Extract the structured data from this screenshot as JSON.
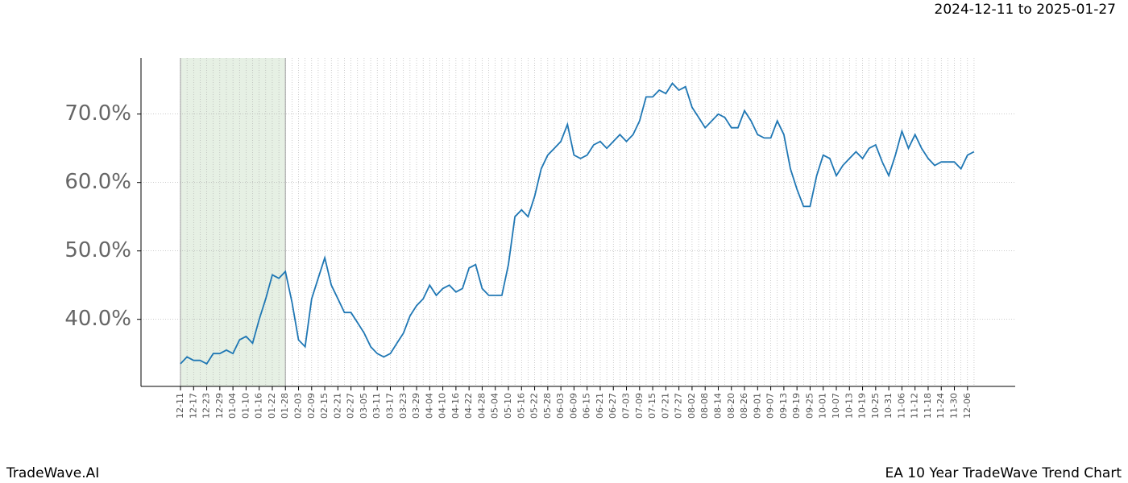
{
  "chart_data": {
    "type": "line",
    "date_range": "2024-12-11 to 2025-01-27",
    "brand": "TradeWave.AI",
    "title": "EA 10 Year TradeWave Trend Chart",
    "categories": [
      "12-11",
      null,
      "12-17",
      null,
      "12-23",
      null,
      "12-29",
      null,
      "01-04",
      null,
      "01-10",
      null,
      "01-16",
      null,
      "01-22",
      null,
      "01-28",
      null,
      "02-03",
      null,
      "02-09",
      null,
      "02-15",
      null,
      "02-21",
      null,
      "02-27",
      null,
      "03-05",
      null,
      "03-11",
      null,
      "03-17",
      null,
      "03-23",
      null,
      "03-29",
      null,
      "04-04",
      null,
      "04-10",
      null,
      "04-16",
      null,
      "04-22",
      null,
      "04-28",
      null,
      "05-04",
      null,
      "05-10",
      null,
      "05-16",
      null,
      "05-22",
      null,
      "05-28",
      null,
      "06-03",
      null,
      "06-09",
      null,
      "06-15",
      null,
      "06-21",
      null,
      "06-27",
      null,
      "07-03",
      null,
      "07-09",
      null,
      "07-15",
      null,
      "07-21",
      null,
      "07-27",
      null,
      "08-02",
      null,
      "08-08",
      null,
      "08-14",
      null,
      "08-20",
      null,
      "08-26",
      null,
      "09-01",
      null,
      "09-07",
      null,
      "09-13",
      null,
      "09-19",
      null,
      "09-25",
      null,
      "10-01",
      null,
      "10-07",
      null,
      "10-13",
      null,
      "10-19",
      null,
      "10-25",
      null,
      "10-31",
      null,
      "11-06",
      null,
      "11-12",
      null,
      "11-18",
      null,
      "11-24",
      null,
      "11-30",
      null,
      "12-06",
      null
    ],
    "values": [
      33.5,
      34.5,
      34,
      34,
      33.5,
      35,
      35,
      35.5,
      35,
      37,
      37.5,
      36.5,
      40,
      43,
      46.5,
      46,
      47,
      42.5,
      37,
      36,
      43,
      46,
      49,
      45,
      43,
      41,
      41,
      39.5,
      38,
      36,
      35,
      34.5,
      35,
      36.5,
      38,
      40.5,
      42,
      43,
      45,
      43.5,
      44.5,
      45,
      44,
      44.5,
      47.5,
      48,
      44.5,
      43.5,
      43.5,
      43.5,
      48,
      55,
      56,
      55,
      58,
      62,
      64,
      65,
      66,
      68.5,
      64,
      63.5,
      64,
      65.5,
      66,
      65,
      66,
      67,
      66,
      67,
      69,
      72.5,
      72.5,
      73.5,
      73,
      74.5,
      73.5,
      74,
      71,
      69.5,
      68,
      69,
      70,
      69.5,
      68,
      68,
      70.5,
      69,
      67,
      66.5,
      66.5,
      69,
      67,
      62,
      59,
      56.5,
      56.5,
      61,
      64,
      63.5,
      61,
      62.5,
      63.5,
      64.5,
      63.5,
      65,
      65.5,
      63,
      61,
      64,
      67.5,
      65,
      67,
      65,
      63.5,
      62.5,
      63,
      63,
      63,
      62,
      64,
      64.5
    ],
    "color": "#1f77b4",
    "shaded_range": [
      "12-11",
      "01-28"
    ],
    "shade_color": "#e6f0e4",
    "ylim": [
      30.2,
      78.2
    ],
    "yticks": [
      {
        "value": 40,
        "label": "40.0%"
      },
      {
        "value": 50,
        "label": "50.0%"
      },
      {
        "value": 60,
        "label": "60.0%"
      },
      {
        "value": 70,
        "label": "70.0%"
      }
    ],
    "grid": true
  }
}
